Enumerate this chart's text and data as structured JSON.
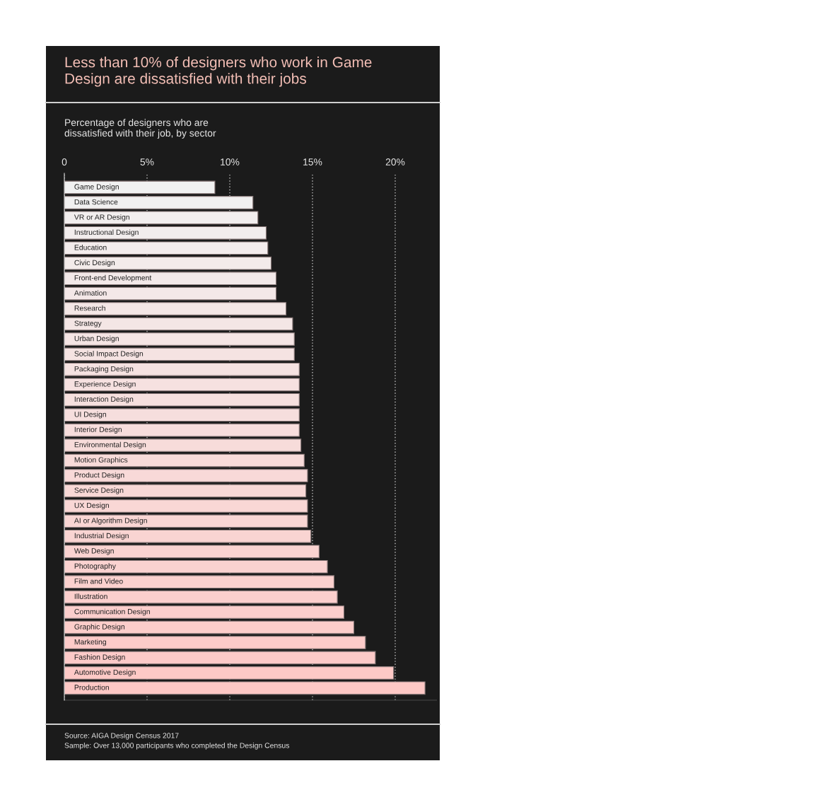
{
  "chart_data": {
    "type": "bar",
    "orientation": "horizontal",
    "title": "Less than 10% of designers who work in Game Design are dissatisfied with their jobs",
    "subtitle": "Percentage of designers who are dissatisfied with their job, by sector",
    "categories": [
      "Game Design",
      "Data Science",
      "VR or AR Design",
      "Instructional Design",
      "Education",
      "Civic Design",
      "Front-end Development",
      "Animation",
      "Research",
      "Strategy",
      "Urban Design",
      "Social Impact Design",
      "Packaging Design",
      "Experience Design",
      "Interaction Design",
      "UI Design",
      "Interior Design",
      "Environmental Design",
      "Motion Graphics",
      "Product Design",
      "Service Design",
      "UX Design",
      "AI or Algorithm Design",
      "Industrial Design",
      "Web Design",
      "Photography",
      "Film and Video",
      "Illustration",
      "Communication Design",
      "Graphic Design",
      "Marketing",
      "Fashion Design",
      "Automotive Design",
      "Production"
    ],
    "values": [
      9.1,
      11.4,
      11.7,
      12.2,
      12.3,
      12.5,
      12.8,
      12.8,
      13.4,
      13.8,
      13.9,
      13.9,
      14.2,
      14.2,
      14.2,
      14.2,
      14.2,
      14.3,
      14.5,
      14.7,
      14.6,
      14.7,
      14.7,
      14.9,
      15.4,
      15.9,
      16.3,
      16.5,
      16.9,
      17.5,
      18.2,
      18.8,
      19.9,
      21.8
    ],
    "colors": [
      "#f1f1f1",
      "#f1f0f0",
      "#f2eeee",
      "#f2eded",
      "#f3ecec",
      "#f3ebea",
      "#f3e9e9",
      "#f4e8e8",
      "#f4e7e6",
      "#f4e6e5",
      "#f5e5e4",
      "#f5e3e2",
      "#f5e2e1",
      "#f6e1e0",
      "#f6e0de",
      "#f6dedd",
      "#f7dddc",
      "#f7dcda",
      "#f8dbd9",
      "#f8d9d8",
      "#f8d8d6",
      "#f9d7d5",
      "#f9d6d4",
      "#f9d4d2",
      "#fad3d1",
      "#fad2d0",
      "#fbd1ce",
      "#fbcfcd",
      "#fbcecc",
      "#fccdca",
      "#fccbc9",
      "#fccac8",
      "#fdc9c6",
      "#fdc8c5"
    ],
    "xlim": [
      0,
      22.5
    ],
    "xticks": [
      0,
      {
        "value": 5,
        "label": "5%"
      },
      {
        "value": 10,
        "label": "10%"
      },
      {
        "value": 15,
        "label": "15%"
      },
      {
        "value": 20,
        "label": "20%"
      }
    ],
    "grid": "x",
    "annotations": [
      "Source: AIGA Design Census 2017",
      "Sample: Over 13,000 participants who completed the Design Census"
    ]
  }
}
